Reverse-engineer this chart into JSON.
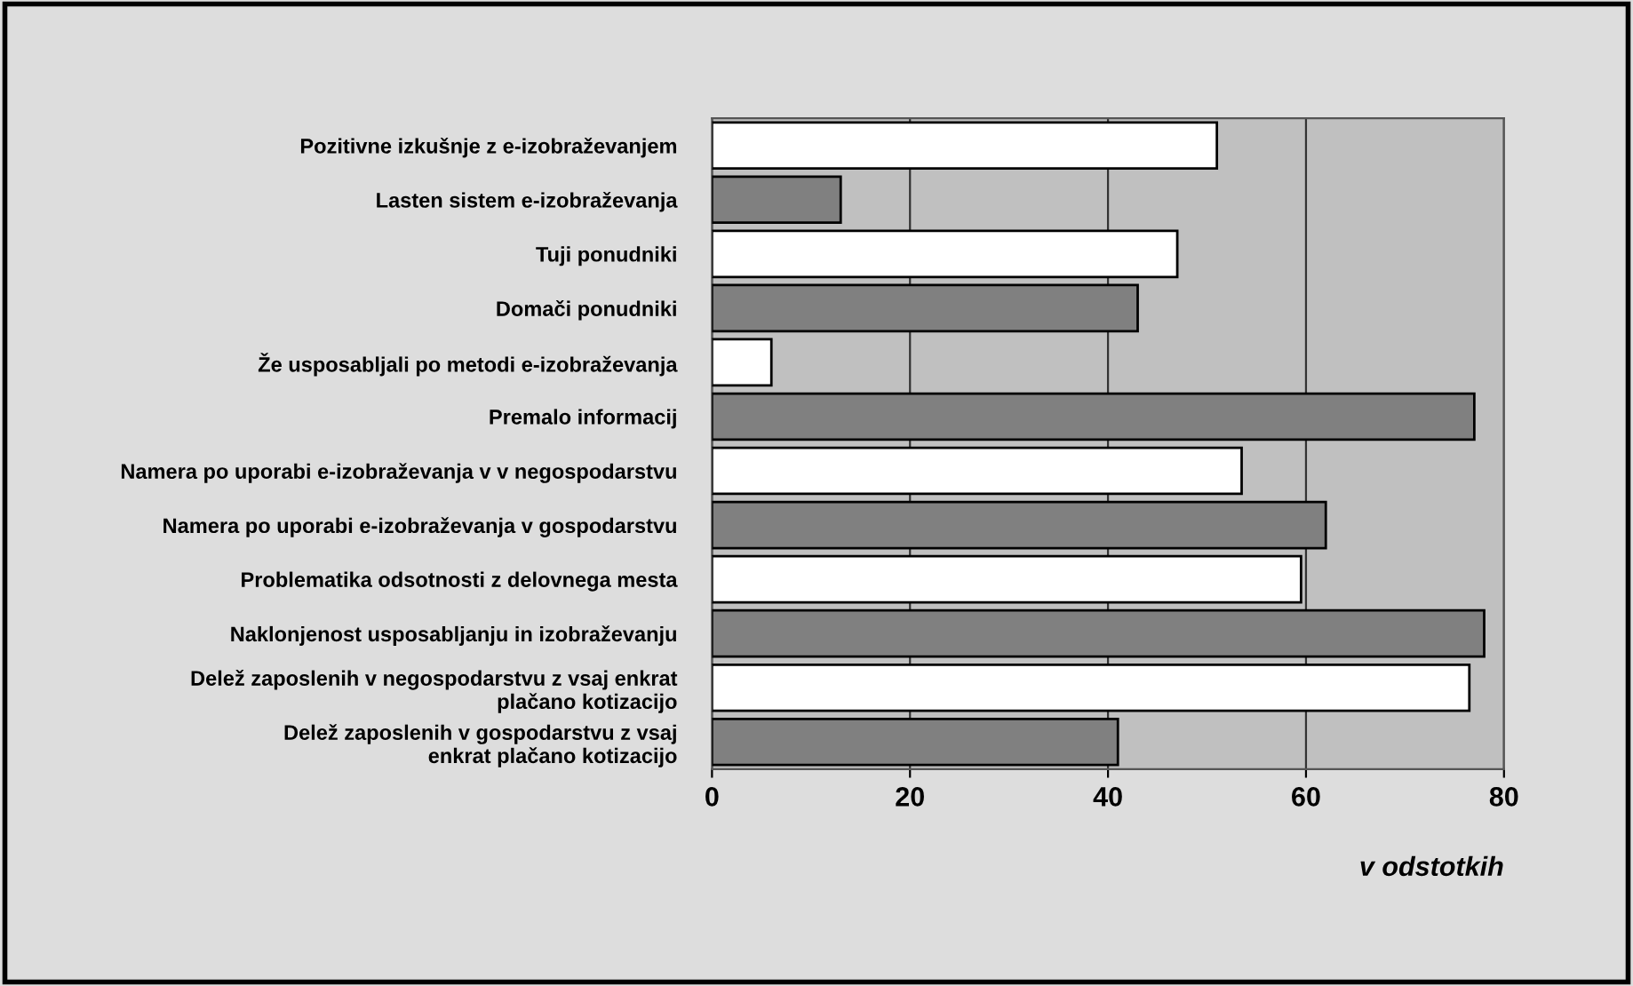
{
  "chart_data": {
    "type": "bar",
    "orientation": "horizontal",
    "xlabel": "v odstotkih",
    "categories": [
      "Pozitivne izkušnje z e-izobraževanjem",
      "Lasten sistem e-izobraževanja",
      "Tuji ponudniki",
      "Domači ponudniki",
      "Že usposabljali po metodi e-izobraževanja",
      "Premalo informacij",
      "Namera po uporabi e-izobraževanja v v negospodarstvu",
      "Namera po uporabi e-izobraževanja v gospodarstvu",
      "Problematika odsotnosti z delovnega mesta",
      "Naklonjenost usposabljanju in izobraževanju",
      "Delež zaposlenih v negospodarstvu z vsaj enkrat\nplačano kotizacijo",
      "Delež zaposlenih v gospodarstvu z vsaj\nenkrat plačano kotizacijo"
    ],
    "values": [
      51,
      13,
      47,
      43,
      6,
      77,
      53.5,
      62,
      59.5,
      78,
      76.5,
      41
    ],
    "colors": [
      "#ffffff",
      "#808080",
      "#ffffff",
      "#808080",
      "#ffffff",
      "#808080",
      "#ffffff",
      "#808080",
      "#ffffff",
      "#808080",
      "#ffffff",
      "#808080"
    ],
    "xlim": [
      0,
      80
    ],
    "xticks": [
      0,
      20,
      40,
      60,
      80
    ],
    "grid": "x",
    "legend": false
  }
}
